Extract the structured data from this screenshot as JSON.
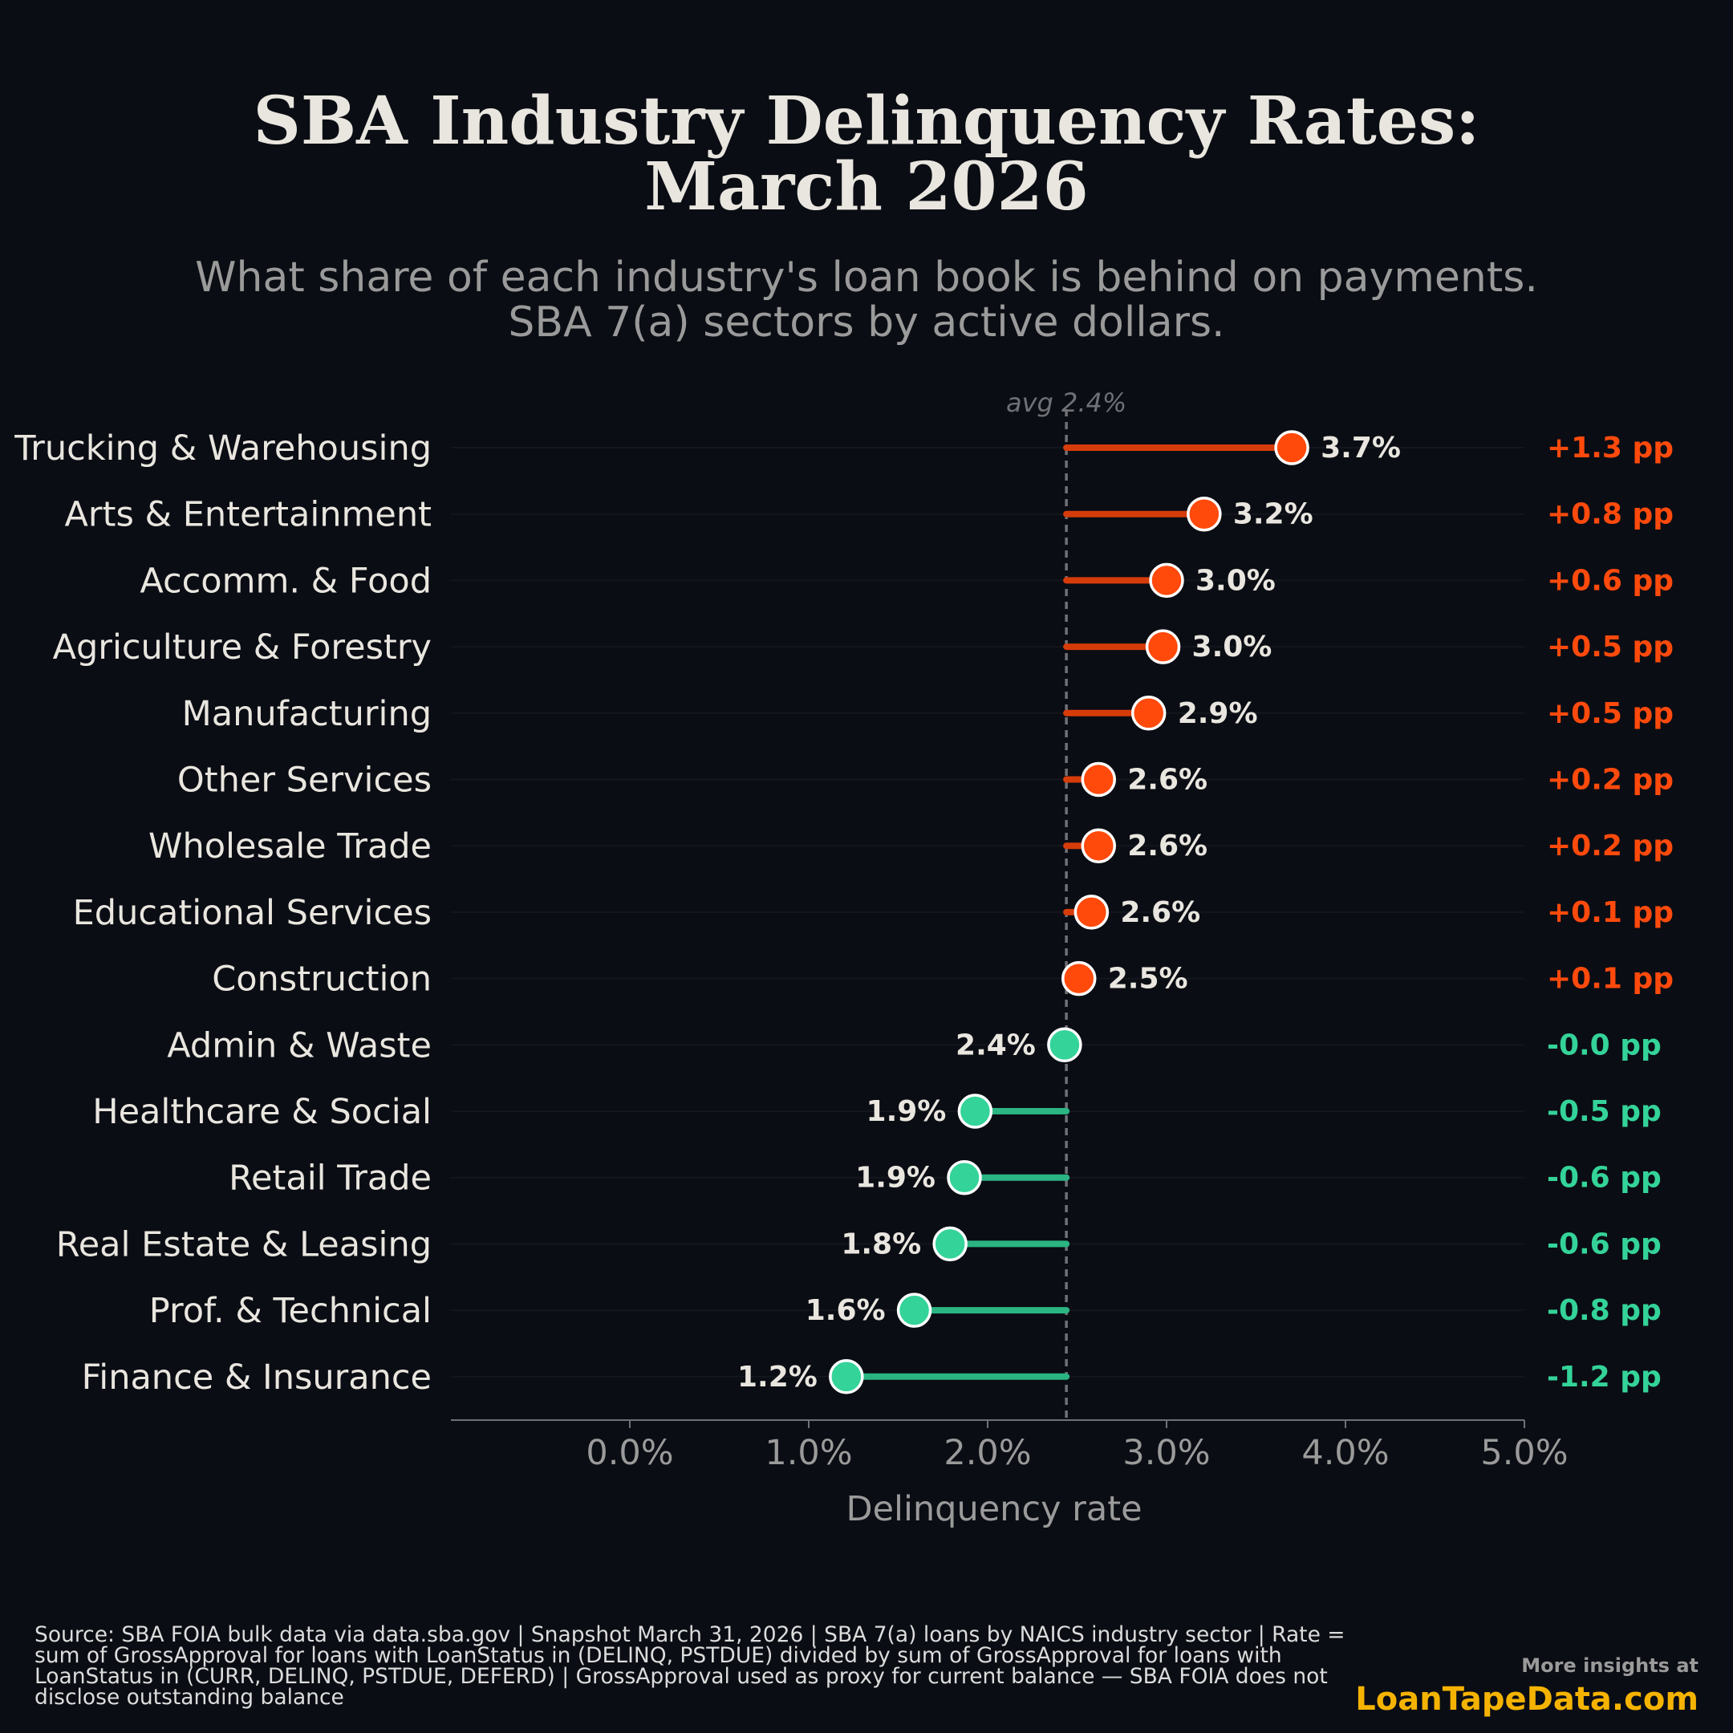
{
  "header": {
    "title": "SBA Industry Delinquency Rates:\nMarch 2026",
    "subtitle": "What share of each industry's loan book is behind on payments.\nSBA 7(a) sectors by active dollars."
  },
  "footer": {
    "source": "Source: SBA FOIA bulk data via data.sba.gov | Snapshot March 31, 2026 | SBA 7(a) loans by NAICS industry sector | Rate = sum of GrossApproval for loans with LoanStatus in (DELINQ, PSTDUE) divided by sum of GrossApproval for loans with LoanStatus in (CURR, DELINQ, PSTDUE, DEFERD) | GrossApproval used as proxy for current balance — SBA FOIA does not disclose outstanding balance",
    "promo_label": "More insights at",
    "promo_site": "LoanTapeData.com"
  },
  "colors": {
    "background": "#0b0d14",
    "above_avg": "#ff4a0c",
    "above_avg_stem": "#d63c0a",
    "below_avg": "#34d399",
    "below_avg_stem": "#2bb583",
    "text": "#e9e6df",
    "muted": "#9a9a9a",
    "promo": "#f5b301"
  },
  "chart_data": {
    "type": "lollipop",
    "xlabel": "Delinquency rate",
    "xlim": [
      -1.0,
      5.0
    ],
    "x_ticks": [
      "0.0%",
      "1.0%",
      "2.0%",
      "3.0%",
      "4.0%",
      "5.0%"
    ],
    "x_tick_values": [
      0,
      1,
      2,
      3,
      4,
      5
    ],
    "average": {
      "value": 2.44,
      "label": "avg 2.4%"
    },
    "rows": [
      {
        "category": "Trucking & Warehousing",
        "value": 3.7,
        "label": "3.7%",
        "diff": "+1.3 pp"
      },
      {
        "category": "Arts & Entertainment",
        "value": 3.21,
        "label": "3.2%",
        "diff": "+0.8 pp"
      },
      {
        "category": "Accomm. & Food",
        "value": 3.0,
        "label": "3.0%",
        "diff": "+0.6 pp"
      },
      {
        "category": "Agriculture & Forestry",
        "value": 2.98,
        "label": "3.0%",
        "diff": "+0.5 pp"
      },
      {
        "category": "Manufacturing",
        "value": 2.9,
        "label": "2.9%",
        "diff": "+0.5 pp"
      },
      {
        "category": "Other Services",
        "value": 2.62,
        "label": "2.6%",
        "diff": "+0.2 pp"
      },
      {
        "category": "Wholesale Trade",
        "value": 2.62,
        "label": "2.6%",
        "diff": "+0.2 pp"
      },
      {
        "category": "Educational Services",
        "value": 2.58,
        "label": "2.6%",
        "diff": "+0.1 pp"
      },
      {
        "category": "Construction",
        "value": 2.51,
        "label": "2.5%",
        "diff": "+0.1 pp"
      },
      {
        "category": "Admin & Waste",
        "value": 2.43,
        "label": "2.4%",
        "diff": "-0.0 pp"
      },
      {
        "category": "Healthcare & Social",
        "value": 1.93,
        "label": "1.9%",
        "diff": "-0.5 pp"
      },
      {
        "category": "Retail Trade",
        "value": 1.87,
        "label": "1.9%",
        "diff": "-0.6 pp"
      },
      {
        "category": "Real Estate & Leasing",
        "value": 1.79,
        "label": "1.8%",
        "diff": "-0.6 pp"
      },
      {
        "category": "Prof. & Technical",
        "value": 1.59,
        "label": "1.6%",
        "diff": "-0.8 pp"
      },
      {
        "category": "Finance & Insurance",
        "value": 1.21,
        "label": "1.2%",
        "diff": "-1.2 pp"
      }
    ]
  }
}
